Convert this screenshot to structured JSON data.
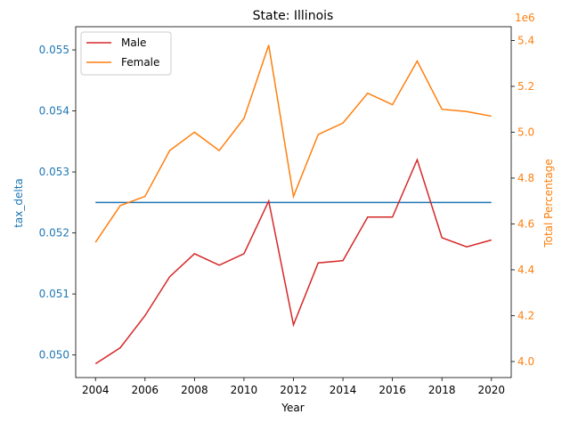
{
  "chart_data": {
    "type": "line",
    "title": "State: Illinois",
    "xlabel": "Year",
    "ylabel_left": "tax_delta",
    "ylabel_right": "Total Percentage",
    "right_axis_offset_label": "1e6",
    "x": [
      2004,
      2005,
      2006,
      2007,
      2008,
      2009,
      2010,
      2011,
      2012,
      2013,
      2014,
      2015,
      2016,
      2017,
      2018,
      2019,
      2020
    ],
    "x_ticks": [
      "2004",
      "2006",
      "2008",
      "2010",
      "2012",
      "2014",
      "2016",
      "2018",
      "2020"
    ],
    "xlim": [
      2003.2,
      2020.8
    ],
    "left_axis": {
      "ylim": [
        0.04963,
        0.05538
      ],
      "ticks": [
        0.05,
        0.051,
        0.052,
        0.053,
        0.054,
        0.055
      ],
      "tick_labels": [
        "0.050",
        "0.051",
        "0.052",
        "0.053",
        "0.054",
        "0.055"
      ],
      "color": "#1f77b4"
    },
    "right_axis": {
      "ylim": [
        3.93,
        5.46
      ],
      "ticks": [
        4.0,
        4.2,
        4.4,
        4.6,
        4.8,
        5.0,
        5.2,
        5.4
      ],
      "tick_labels": [
        "4.0",
        "4.2",
        "4.4",
        "4.6",
        "4.8",
        "5.0",
        "5.2",
        "5.4"
      ],
      "color": "#ff7f0e"
    },
    "series": [
      {
        "axis": "left",
        "color": "#1f77b4",
        "values": [
          0.0525,
          0.0525,
          0.0525,
          0.0525,
          0.0525,
          0.0525,
          0.0525,
          0.0525,
          0.0525,
          0.0525,
          0.0525,
          0.0525,
          0.0525,
          0.0525,
          0.0525,
          0.0525,
          0.0525
        ]
      },
      {
        "name": "Male",
        "axis": "right",
        "color": "#d62728",
        "values": [
          3.99,
          4.06,
          4.2,
          4.37,
          4.47,
          4.42,
          4.47,
          4.7,
          4.16,
          4.43,
          4.44,
          4.63,
          4.63,
          4.88,
          4.54,
          4.5,
          4.53
        ]
      },
      {
        "name": "Female",
        "axis": "right",
        "color": "#ff7f0e",
        "values": [
          4.52,
          4.68,
          4.72,
          4.92,
          5.0,
          4.92,
          5.06,
          5.38,
          4.72,
          4.99,
          5.04,
          5.17,
          5.12,
          5.31,
          5.1,
          5.09,
          5.07
        ]
      }
    ],
    "legend": {
      "placement": "top-left",
      "entries": [
        "Male",
        "Female"
      ]
    },
    "grid": false
  }
}
